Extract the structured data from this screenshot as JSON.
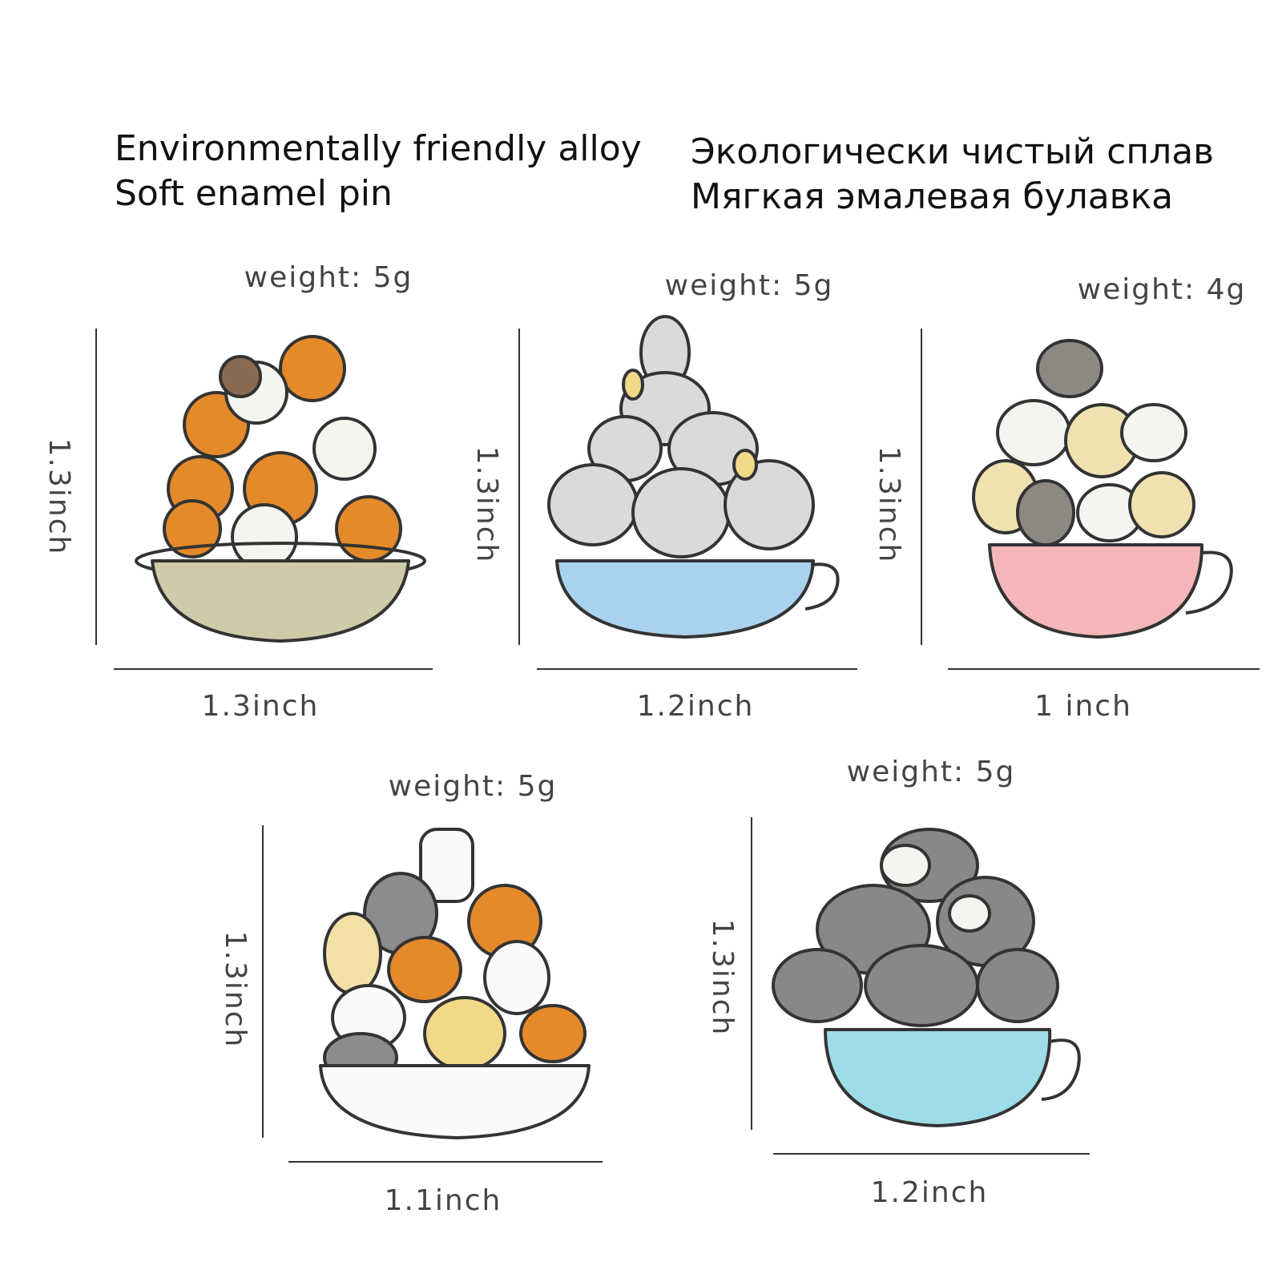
{
  "header": {
    "english": [
      "Environmentally friendly alloy",
      "Soft enamel pin"
    ],
    "russian": [
      "Экологически чистый сплав",
      "Мягкая эмалевая булавка"
    ]
  },
  "products": [
    {
      "weight": "weight: 5g",
      "height": "1.3inch",
      "width": "1.3inch"
    },
    {
      "weight": "weight: 5g",
      "height": "1.3inch",
      "width": "1.2inch"
    },
    {
      "weight": "weight: 4g",
      "height": "1.3inch",
      "width": "1 inch"
    },
    {
      "weight": "weight: 5g",
      "height": "1.3inch",
      "width": "1.1inch"
    },
    {
      "weight": "weight: 5g",
      "height": "1.3inch",
      "width": "1.2inch"
    }
  ]
}
